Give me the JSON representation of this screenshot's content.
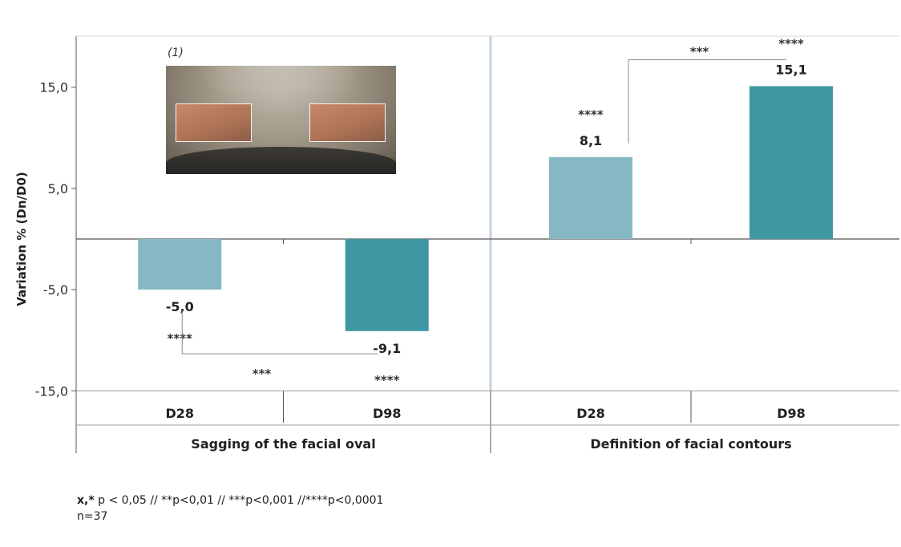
{
  "chart_data": {
    "type": "bar",
    "ylabel": "Variation % (Dn/D0)",
    "ylim": [
      -15,
      15
    ],
    "ytick_labels": [
      "15,0",
      "5,0",
      "-5,0",
      "-15,0"
    ],
    "yticks": [
      15,
      5,
      -5,
      -15
    ],
    "panels": [
      {
        "title": "Sagging of the facial oval",
        "categories": [
          "D28",
          "D98"
        ],
        "values": [
          -5.0,
          -9.1
        ],
        "labels": [
          "-5,0",
          "-9,1"
        ],
        "significance": [
          "****",
          "****"
        ],
        "comparison": "***"
      },
      {
        "title": "Definition of facial contours",
        "categories": [
          "D28",
          "D98"
        ],
        "values": [
          8.1,
          15.1
        ],
        "labels": [
          "8,1",
          "15,1"
        ],
        "significance": [
          "****",
          "****"
        ],
        "comparison": "***"
      }
    ],
    "colors": {
      "D28": "#86b8c4",
      "D98": "#3f97a4"
    }
  },
  "photo": {
    "caption": "(1)"
  },
  "footnote": {
    "line1_bold": "x,*",
    "line1": " p < 0,05 // **p<0,01 // ***p<0,001 //****p<0,0001",
    "line2": "n=37"
  }
}
